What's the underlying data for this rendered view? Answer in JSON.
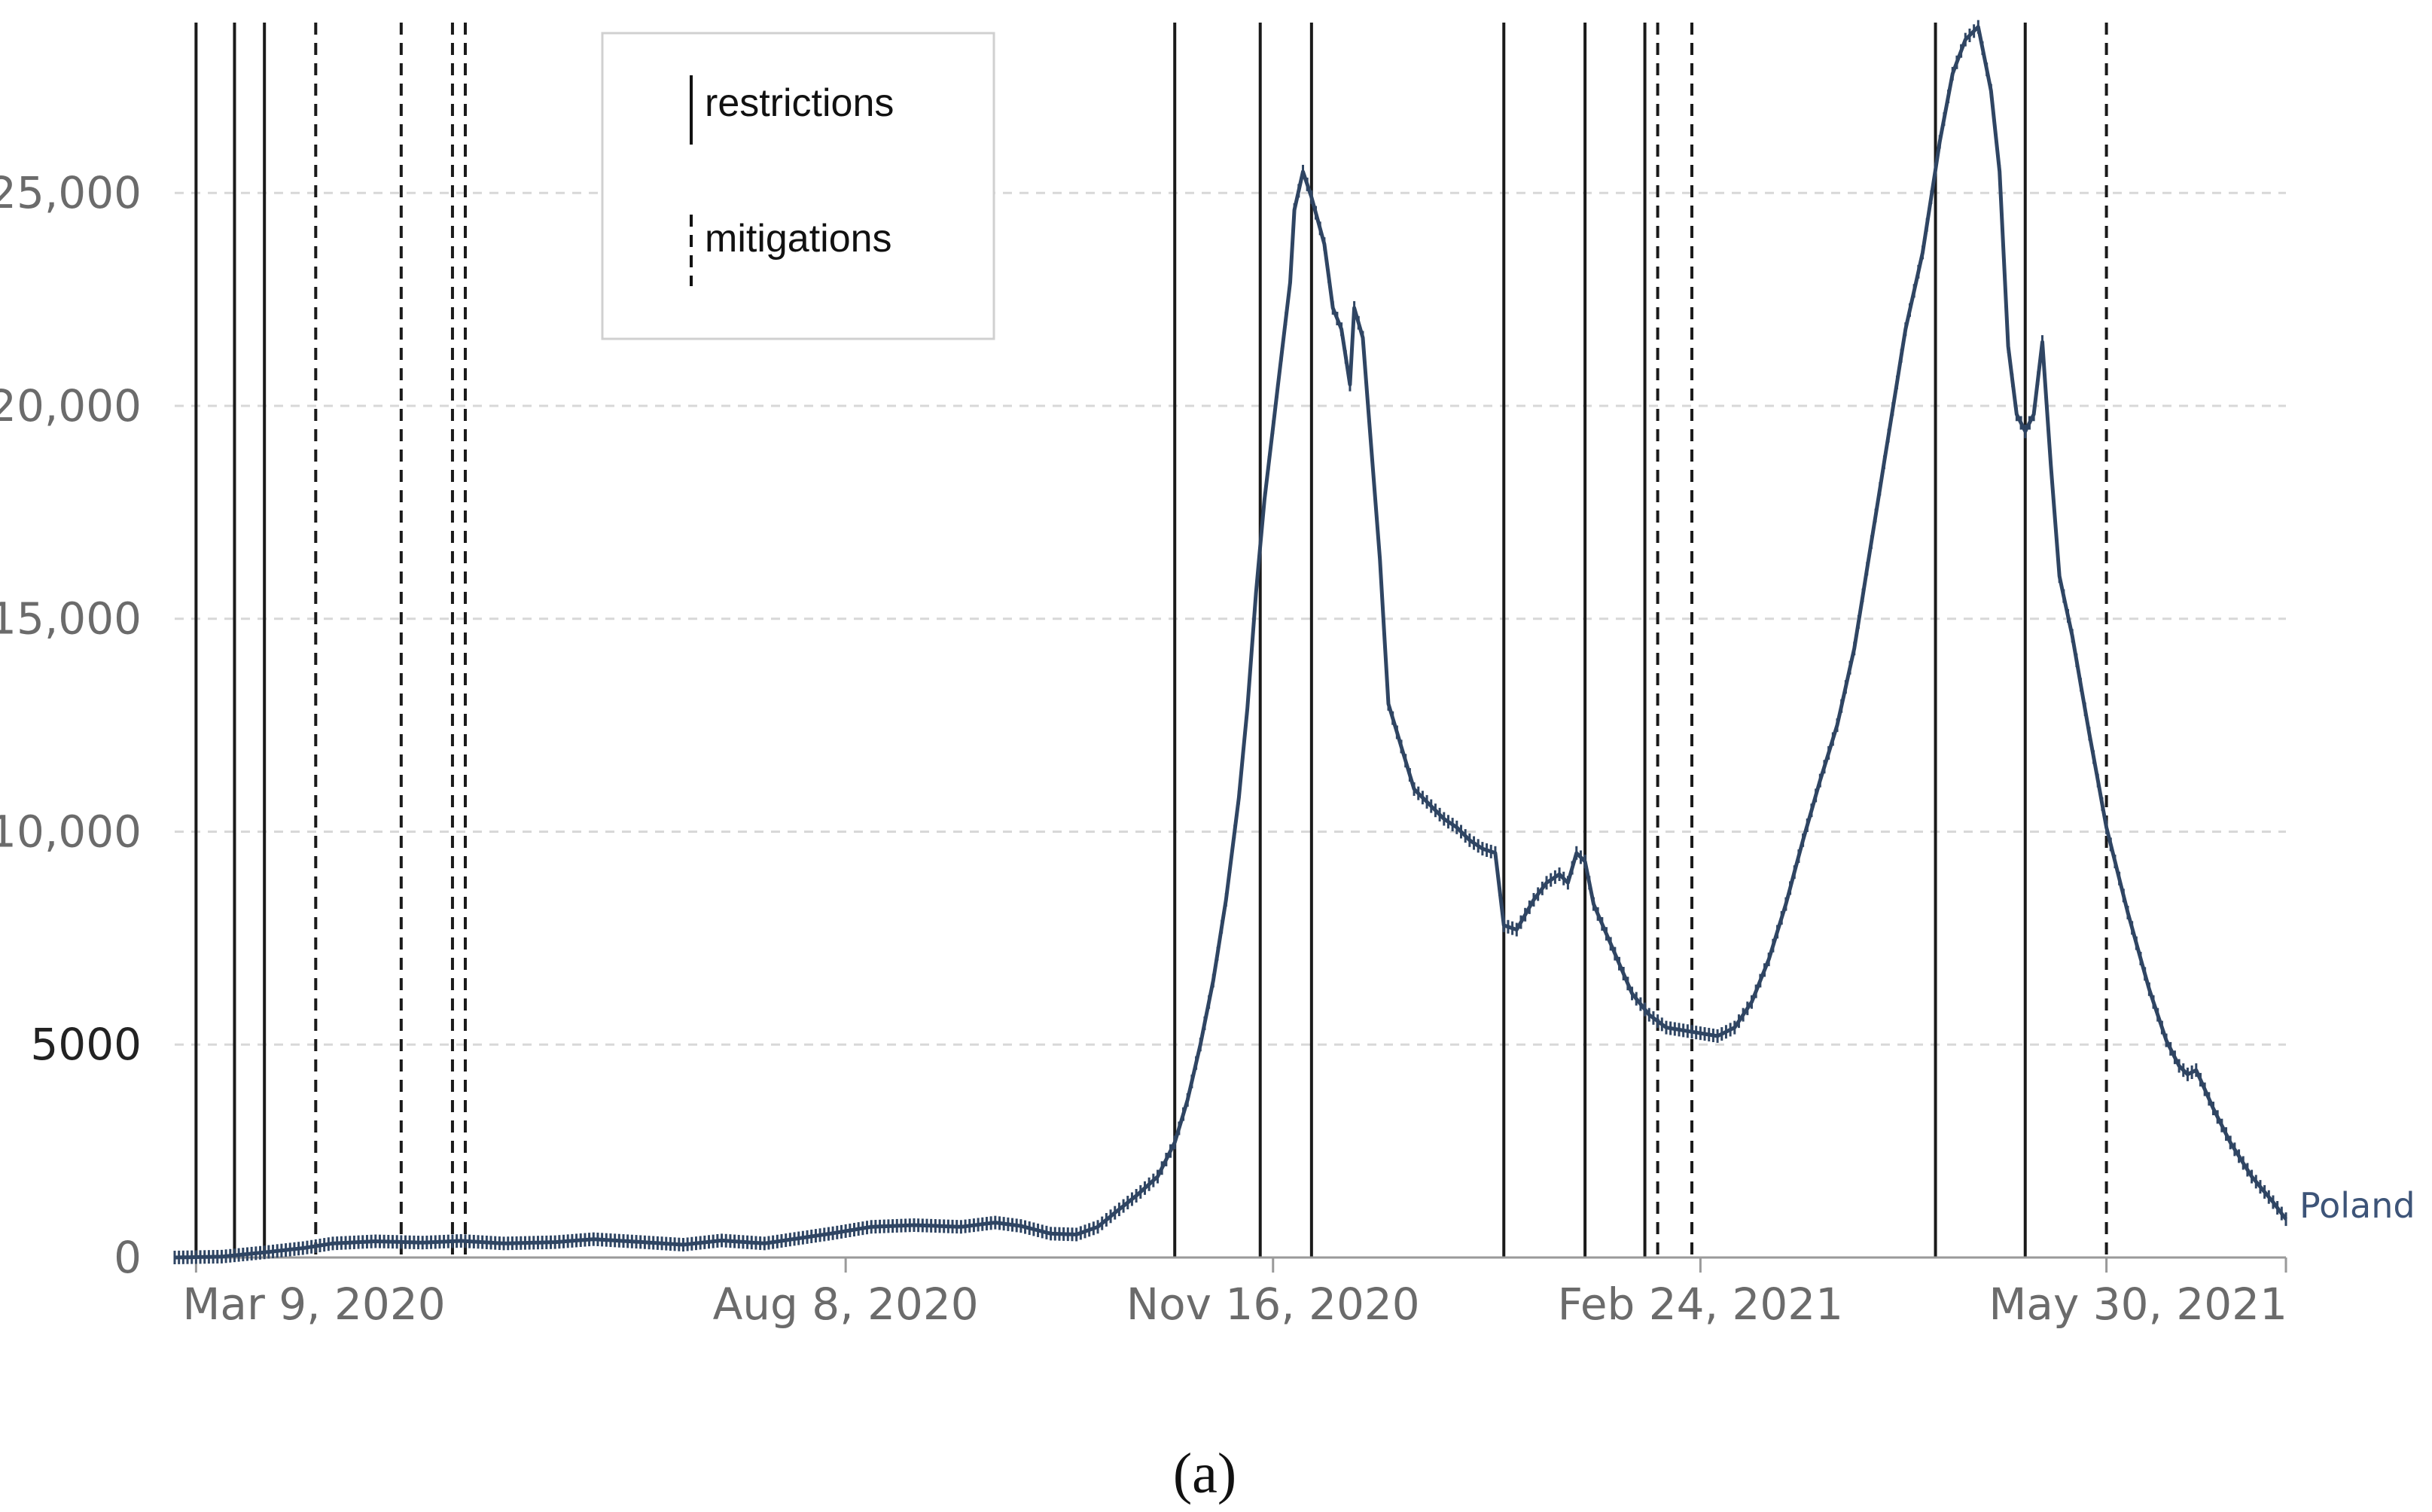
{
  "chart_data": {
    "type": "line",
    "x_axis": {
      "type": "date",
      "tick_labels": [
        {
          "date": "2020-03-09",
          "label": "Mar 9, 2020"
        },
        {
          "date": "2020-08-08",
          "label": "Aug 8, 2020"
        },
        {
          "date": "2020-11-16",
          "label": "Nov 16, 2020"
        },
        {
          "date": "2021-02-24",
          "label": "Feb 24, 2021"
        },
        {
          "date": "2021-05-30",
          "label": "May 30, 2021"
        }
      ],
      "range": [
        "2020-03-04",
        "2021-07-11"
      ]
    },
    "y_axis": {
      "ticks": [
        0,
        5000,
        10000,
        15000,
        20000,
        25000
      ],
      "tick_labels": [
        "0",
        "5000",
        "10,000",
        "15,000",
        "20,000",
        "25,000"
      ],
      "ylim": [
        0,
        29000
      ],
      "grid": "horizontal dashed"
    },
    "series": [
      {
        "name": "Poland",
        "color": "#2f4563",
        "points": [
          [
            "2020-03-04",
            0
          ],
          [
            "2020-03-15",
            20
          ],
          [
            "2020-03-25",
            120
          ],
          [
            "2020-04-03",
            220
          ],
          [
            "2020-04-10",
            330
          ],
          [
            "2020-04-20",
            380
          ],
          [
            "2020-05-01",
            350
          ],
          [
            "2020-05-10",
            390
          ],
          [
            "2020-05-20",
            330
          ],
          [
            "2020-06-01",
            360
          ],
          [
            "2020-06-10",
            430
          ],
          [
            "2020-06-20",
            370
          ],
          [
            "2020-07-01",
            300
          ],
          [
            "2020-07-10",
            400
          ],
          [
            "2020-07-20",
            330
          ],
          [
            "2020-07-30",
            480
          ],
          [
            "2020-08-05",
            570
          ],
          [
            "2020-08-14",
            720
          ],
          [
            "2020-08-24",
            760
          ],
          [
            "2020-09-04",
            720
          ],
          [
            "2020-09-12",
            820
          ],
          [
            "2020-09-18",
            740
          ],
          [
            "2020-09-25",
            560
          ],
          [
            "2020-10-01",
            540
          ],
          [
            "2020-10-06",
            720
          ],
          [
            "2020-10-10",
            1050
          ],
          [
            "2020-10-15",
            1450
          ],
          [
            "2020-10-20",
            1900
          ],
          [
            "2020-10-24",
            2700
          ],
          [
            "2020-10-27",
            3700
          ],
          [
            "2020-10-30",
            5000
          ],
          [
            "2020-11-02",
            6500
          ],
          [
            "2020-11-05",
            8400
          ],
          [
            "2020-11-08",
            10800
          ],
          [
            "2020-11-10",
            12900
          ],
          [
            "2020-11-12",
            15600
          ],
          [
            "2020-11-14",
            17800
          ],
          [
            "2020-11-16",
            19500
          ],
          [
            "2020-11-18",
            21200
          ],
          [
            "2020-11-20",
            22900
          ],
          [
            "2020-11-21",
            24600
          ],
          [
            "2020-11-23",
            25500
          ],
          [
            "2020-11-25",
            24900
          ],
          [
            "2020-11-28",
            23800
          ],
          [
            "2020-11-30",
            22300
          ],
          [
            "2020-12-02",
            21800
          ],
          [
            "2020-12-04",
            20500
          ],
          [
            "2020-12-05",
            22300
          ],
          [
            "2020-12-07",
            21600
          ],
          [
            "2020-12-09",
            19000
          ],
          [
            "2020-12-11",
            16400
          ],
          [
            "2020-12-13",
            13000
          ],
          [
            "2020-12-16",
            12000
          ],
          [
            "2020-12-19",
            11000
          ],
          [
            "2020-12-23",
            10600
          ],
          [
            "2020-12-26",
            10300
          ],
          [
            "2020-12-29",
            10100
          ],
          [
            "2021-01-01",
            9800
          ],
          [
            "2021-01-04",
            9600
          ],
          [
            "2021-01-07",
            9500
          ],
          [
            "2021-01-09",
            7800
          ],
          [
            "2021-01-12",
            7700
          ],
          [
            "2021-01-16",
            8400
          ],
          [
            "2021-01-19",
            8800
          ],
          [
            "2021-01-22",
            9000
          ],
          [
            "2021-01-24",
            8800
          ],
          [
            "2021-01-26",
            9500
          ],
          [
            "2021-01-28",
            9300
          ],
          [
            "2021-01-30",
            8300
          ],
          [
            "2021-02-02",
            7600
          ],
          [
            "2021-02-05",
            6900
          ],
          [
            "2021-02-08",
            6200
          ],
          [
            "2021-02-12",
            5700
          ],
          [
            "2021-02-16",
            5400
          ],
          [
            "2021-02-22",
            5300
          ],
          [
            "2021-02-28",
            5200
          ],
          [
            "2021-03-04",
            5400
          ],
          [
            "2021-03-08",
            6000
          ],
          [
            "2021-03-12",
            7000
          ],
          [
            "2021-03-16",
            8300
          ],
          [
            "2021-03-20",
            9800
          ],
          [
            "2021-03-24",
            11200
          ],
          [
            "2021-03-28",
            12500
          ],
          [
            "2021-04-01",
            14300
          ],
          [
            "2021-04-05",
            16800
          ],
          [
            "2021-04-09",
            19300
          ],
          [
            "2021-04-13",
            21800
          ],
          [
            "2021-04-17",
            23600
          ],
          [
            "2021-04-21",
            26200
          ],
          [
            "2021-04-24",
            27800
          ],
          [
            "2021-04-27",
            28600
          ],
          [
            "2021-04-30",
            28900
          ],
          [
            "2021-05-03",
            27400
          ],
          [
            "2021-05-05",
            25500
          ],
          [
            "2021-05-07",
            21400
          ],
          [
            "2021-05-09",
            19800
          ],
          [
            "2021-05-11",
            19400
          ],
          [
            "2021-05-13",
            19800
          ],
          [
            "2021-05-15",
            21500
          ],
          [
            "2021-05-17",
            18600
          ],
          [
            "2021-05-19",
            16000
          ],
          [
            "2021-05-22",
            14600
          ],
          [
            "2021-05-26",
            12300
          ],
          [
            "2021-05-30",
            10100
          ],
          [
            "2021-06-04",
            8100
          ],
          [
            "2021-06-09",
            6300
          ],
          [
            "2021-06-13",
            5100
          ],
          [
            "2021-06-16",
            4500
          ],
          [
            "2021-06-18",
            4300
          ],
          [
            "2021-06-20",
            4400
          ],
          [
            "2021-06-24",
            3500
          ],
          [
            "2021-06-28",
            2700
          ],
          [
            "2021-07-03",
            1900
          ],
          [
            "2021-07-08",
            1300
          ],
          [
            "2021-07-11",
            900
          ]
        ]
      }
    ],
    "event_lines": {
      "restrictions": [
        "2020-03-09",
        "2020-03-18",
        "2020-03-25",
        "2020-10-24",
        "2020-11-13",
        "2020-11-25",
        "2021-01-09",
        "2021-01-28",
        "2021-02-11",
        "2021-04-20",
        "2021-05-11"
      ],
      "mitigations": [
        "2020-04-06",
        "2020-04-26",
        "2020-05-08",
        "2020-05-11",
        "2021-02-14",
        "2021-02-22",
        "2021-05-30"
      ]
    },
    "legend": {
      "position": "top-left",
      "entries": [
        {
          "label": "restrictions",
          "style": "solid"
        },
        {
          "label": "mitigations",
          "style": "dashed"
        }
      ]
    },
    "series_end_label": "Poland",
    "caption": "(a)"
  }
}
